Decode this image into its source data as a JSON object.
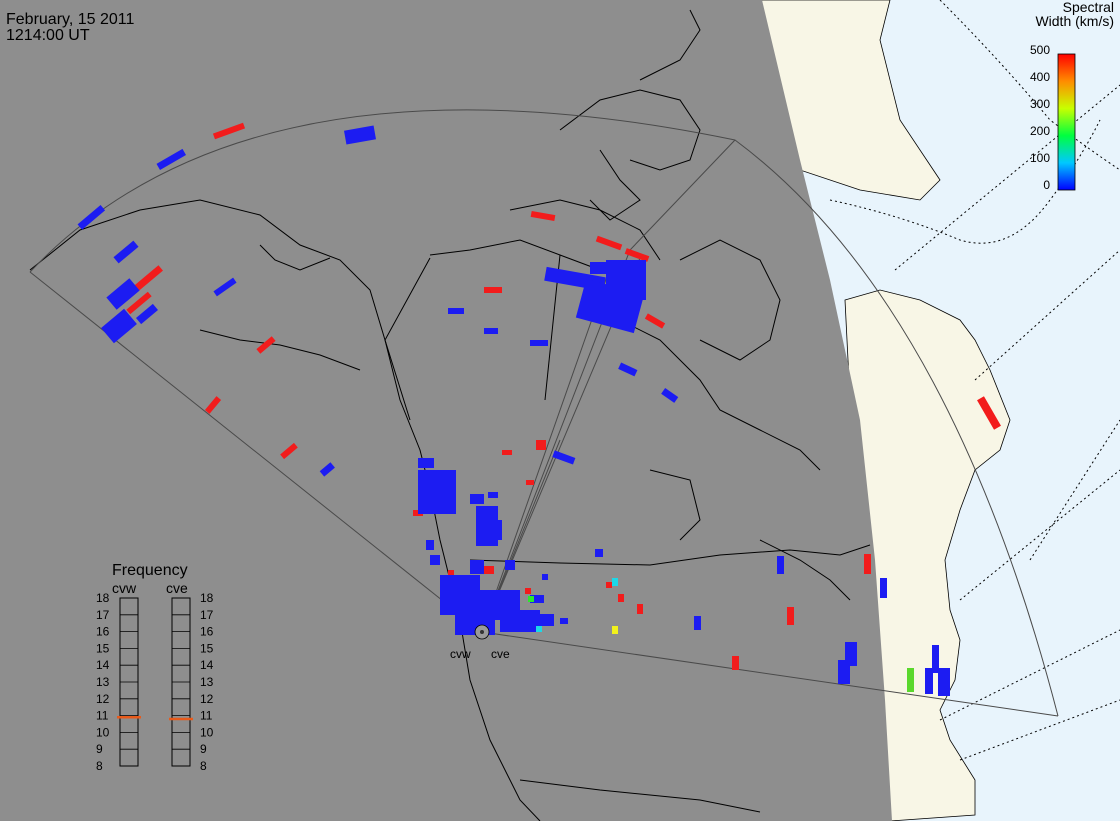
{
  "header": {
    "date": "February, 15 2011",
    "time": "1214:00 UT"
  },
  "colorbar": {
    "title_line1": "Spectral",
    "title_line2": "Width (km/s)",
    "ticks": [
      "500",
      "400",
      "300",
      "200",
      "100",
      "0"
    ]
  },
  "radars": [
    {
      "name": "cvw",
      "frequency_mhz": 10.9
    },
    {
      "name": "cve",
      "frequency_mhz": 10.8
    }
  ],
  "frequency_panel": {
    "title": "Frequency",
    "col_left": "cvw",
    "col_right": "cve",
    "scale": [
      "18",
      "17",
      "16",
      "15",
      "14",
      "13",
      "12",
      "11",
      "10",
      "9",
      "8"
    ]
  },
  "colors": {
    "night_side": "#8e8e8e",
    "day_ocean": "#e8f4fc",
    "day_land": "#f8f6e6",
    "low_width": "#1c1cf2",
    "high_width": "#f21c1c",
    "freq_marker": "#e85a1a"
  }
}
